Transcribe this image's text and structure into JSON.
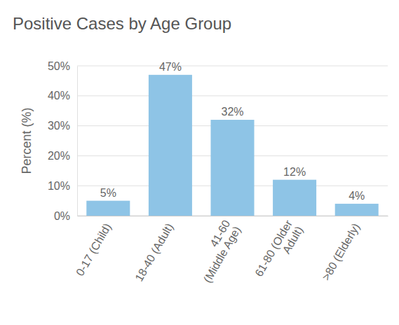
{
  "chart_data": {
    "type": "bar",
    "title": "Positive Cases by Age Group",
    "ylabel": "Percent (%)",
    "categories": [
      "0-17 (Child)",
      "18-40 (Adult)",
      "41-60\n(Middle Age)",
      "61-80 (Older\nAdult)",
      ">80 (Elderly)"
    ],
    "values": [
      5,
      47,
      32,
      12,
      4
    ],
    "value_labels": [
      "5%",
      "47%",
      "32%",
      "12%",
      "4%"
    ],
    "color": "#8ec4e6",
    "ylim": [
      0,
      50
    ],
    "yticks": [
      {
        "value": 0,
        "label": "0%"
      },
      {
        "value": 10,
        "label": "10%"
      },
      {
        "value": 20,
        "label": "20%"
      },
      {
        "value": 30,
        "label": "30%"
      },
      {
        "value": 40,
        "label": "40%"
      },
      {
        "value": 50,
        "label": "50%"
      }
    ],
    "grid": true,
    "data_labels": true
  }
}
